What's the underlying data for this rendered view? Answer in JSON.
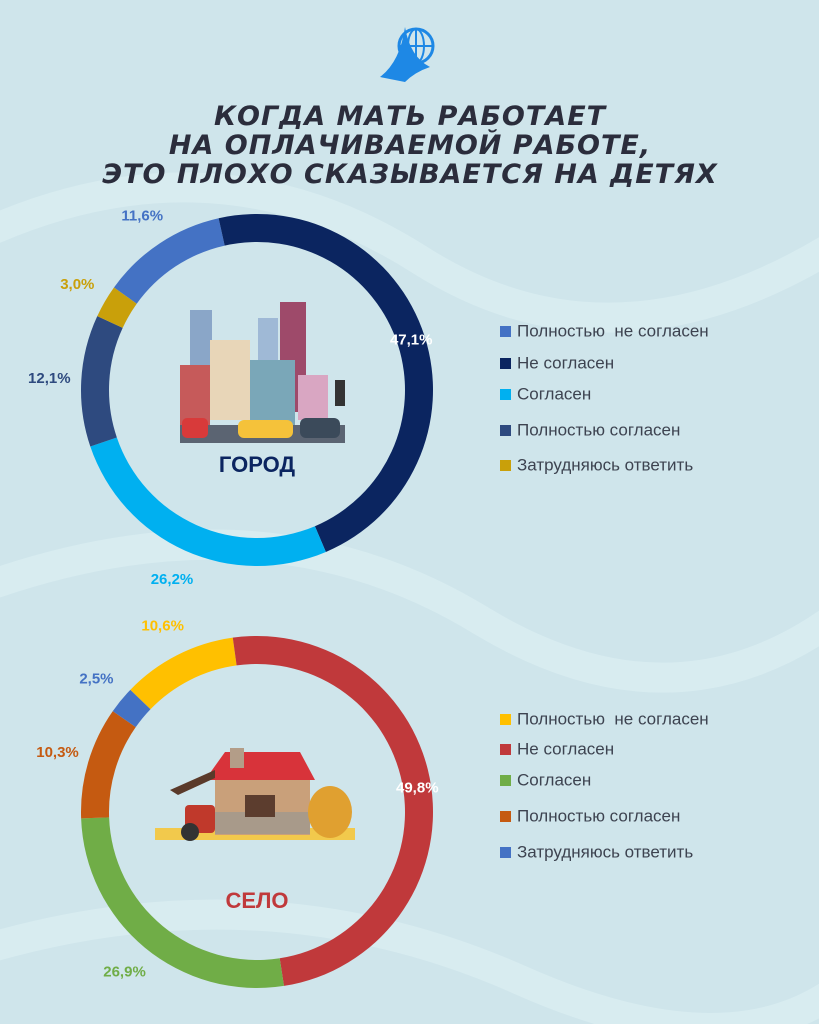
{
  "title": [
    "КОГДА МАТЬ РАБОТАЕТ",
    "НА ОПЛАЧИВАЕМОЙ РАБОТЕ,",
    "ЭТО ПЛОХО СКАЗЫВАЕТСЯ НА ДЕТЯХ"
  ],
  "chart_data": [
    {
      "type": "pie",
      "center_label": "ГОРОД",
      "center_color": "#0b2560",
      "categories": [
        "Полностью  не согласен",
        "Не согласен",
        "Согласен",
        "Полностью согласен",
        "Затрудняюсь ответить"
      ],
      "values": [
        11.6,
        47.1,
        26.2,
        12.1,
        3.0
      ],
      "value_labels": [
        "11,6%",
        "47,1%",
        "26,2%",
        "12,1%",
        "3,0%"
      ],
      "colors": [
        "#4472c4",
        "#0b2560",
        "#00b0f0",
        "#2e4a7f",
        "#c9a00a"
      ]
    },
    {
      "type": "pie",
      "center_label": "СЕЛО",
      "center_color": "#c0393b",
      "categories": [
        "Полностью  не согласен",
        "Не согласен",
        "Согласен",
        "Полностью согласен",
        "Затрудняюсь ответить"
      ],
      "values": [
        10.6,
        49.8,
        26.9,
        10.3,
        2.5
      ],
      "value_labels": [
        "10,6%",
        "49,8%",
        "26,9%",
        "10,3%",
        "2,5%"
      ],
      "colors": [
        "#ffc000",
        "#c0393b",
        "#70ad47",
        "#c55a11",
        "#4472c4"
      ]
    }
  ]
}
